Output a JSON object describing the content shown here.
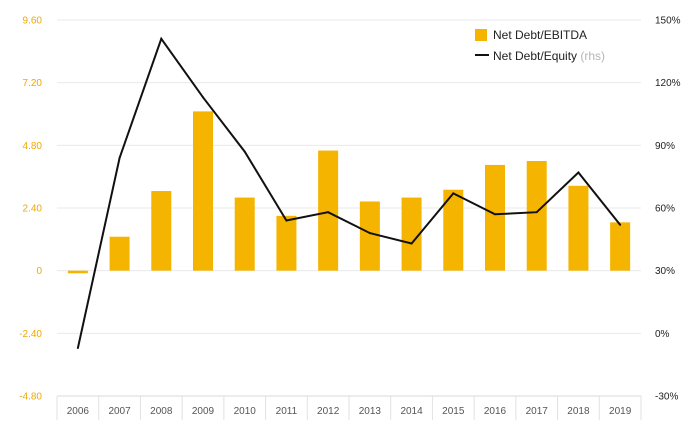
{
  "chart_data": {
    "type": "bar",
    "categories": [
      "2006",
      "2007",
      "2008",
      "2009",
      "2010",
      "2011",
      "2012",
      "2013",
      "2014",
      "2015",
      "2016",
      "2017",
      "2018",
      "2019"
    ],
    "series": [
      {
        "name": "Net Debt/EBITDA",
        "type": "bar",
        "axis": "left",
        "color": "#f5b400",
        "values": [
          -0.1,
          1.3,
          3.05,
          6.1,
          2.8,
          2.1,
          4.6,
          2.65,
          2.8,
          3.1,
          4.05,
          4.2,
          3.25,
          1.85
        ]
      },
      {
        "name": "Net Debt/Equity",
        "type": "line",
        "axis": "right",
        "color": "#111111",
        "values": [
          -7,
          84,
          141,
          113,
          87,
          54,
          58,
          48,
          43,
          67,
          57,
          58,
          77,
          52
        ]
      }
    ],
    "legend": {
      "position": "top-right",
      "items": [
        {
          "label": "Net Debt/EBITDA",
          "note": ""
        },
        {
          "label": "Net Debt/Equity",
          "note": "(rhs)"
        }
      ]
    },
    "y_left": {
      "ticks": [
        9.6,
        7.2,
        4.8,
        2.4,
        0,
        -2.4,
        -4.8
      ],
      "tick_labels": [
        "9.60",
        "7.20",
        "4.80",
        "2.40",
        "0",
        "-2.40",
        "-4.80"
      ],
      "range": [
        -4.8,
        9.6
      ],
      "color": "#f0a800"
    },
    "y_right": {
      "ticks": [
        150,
        120,
        90,
        60,
        30,
        0,
        -30
      ],
      "tick_labels": [
        "150%",
        "120%",
        "90%",
        "60%",
        "30%",
        "0%",
        "-30%"
      ],
      "range": [
        -30,
        150
      ],
      "unit": "%"
    },
    "grid": true
  }
}
